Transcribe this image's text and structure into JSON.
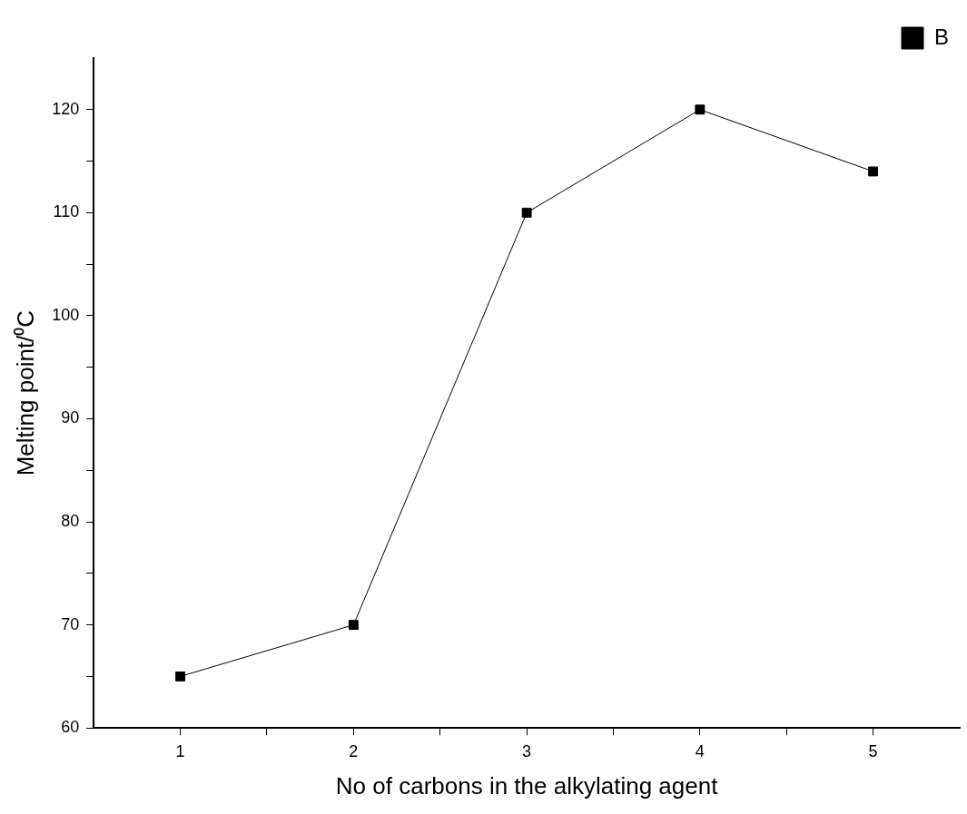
{
  "chart_data": {
    "type": "line",
    "xlabel": "No of carbons in the alkylating agent",
    "ylabel": "Melting point/⁰C",
    "x": [
      1,
      2,
      3,
      4,
      5
    ],
    "series": [
      {
        "name": "B",
        "color": "#000000",
        "values": [
          65,
          70,
          110,
          120,
          114
        ]
      }
    ],
    "xlim": [
      0.5,
      5.5
    ],
    "xticks": [
      1,
      {
        "value": 1.5,
        "label": null
      },
      2,
      {
        "value": 2.5,
        "label": null
      },
      3,
      {
        "value": 3.5,
        "label": null
      },
      4,
      {
        "value": 4.5,
        "label": null
      },
      5
    ],
    "ylim": [
      60,
      125
    ],
    "yticks": [
      60,
      {
        "value": 65,
        "label": null
      },
      70,
      {
        "value": 75,
        "label": null
      },
      80,
      {
        "value": 85,
        "label": null
      },
      90,
      {
        "value": 95,
        "label": null
      },
      100,
      {
        "value": 105,
        "label": null
      },
      110,
      {
        "value": 115,
        "label": null
      },
      120
    ],
    "grid": false,
    "legend": "top right",
    "marker": "square",
    "line_style": "solid"
  }
}
